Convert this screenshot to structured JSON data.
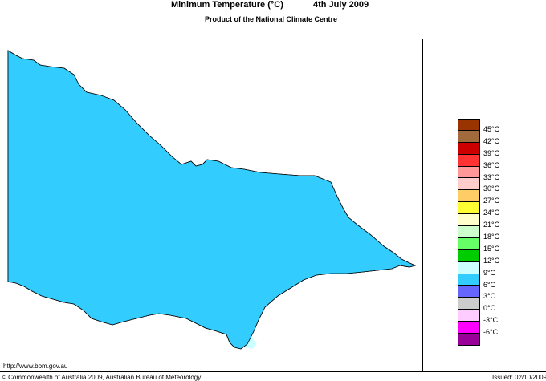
{
  "header": {
    "title": "Minimum Temperature (°C)",
    "date": "4th July 2009",
    "subtitle": "Product of the National Climate Centre"
  },
  "footer": {
    "url": "http://www.bom.gov.au",
    "copyright": "© Commonwealth of Australia 2009, Australian Bureau of Meteorology",
    "issued": "Issued: 02/10/2009"
  },
  "legend": [
    {
      "label": "45°C",
      "color": "#993300"
    },
    {
      "label": "42°C",
      "color": "#a06a3c"
    },
    {
      "label": "39°C",
      "color": "#cc0000"
    },
    {
      "label": "36°C",
      "color": "#ff3333"
    },
    {
      "label": "33°C",
      "color": "#ff9999"
    },
    {
      "label": "30°C",
      "color": "#ffcccc"
    },
    {
      "label": "27°C",
      "color": "#ffcc66"
    },
    {
      "label": "24°C",
      "color": "#ffff33"
    },
    {
      "label": "21°C",
      "color": "#ffffcc"
    },
    {
      "label": "18°C",
      "color": "#ccffcc"
    },
    {
      "label": "15°C",
      "color": "#66ff66"
    },
    {
      "label": "12°C",
      "color": "#00cc00"
    },
    {
      "label": "9°C",
      "color": "#ccffff"
    },
    {
      "label": "6°C",
      "color": "#33ccff"
    },
    {
      "label": "3°C",
      "color": "#6666ff"
    },
    {
      "label": "0°C",
      "color": "#cccccc"
    },
    {
      "label": "-3°C",
      "color": "#ffccff"
    },
    {
      "label": "-6°C",
      "color": "#ff00ff"
    },
    {
      "label": "",
      "color": "#990099"
    }
  ],
  "map": {
    "region": "Victoria",
    "colors": {
      "ocean": "#ffffff",
      "band_9_12": "#ccffff",
      "band_6_9": "#33ccff",
      "band_3_6": "#6666ff",
      "band_0_3": "#cccccc",
      "band_m3_0": "#ffccff",
      "band_m6_m3": "#ff00ff",
      "outline": "#000000"
    }
  }
}
